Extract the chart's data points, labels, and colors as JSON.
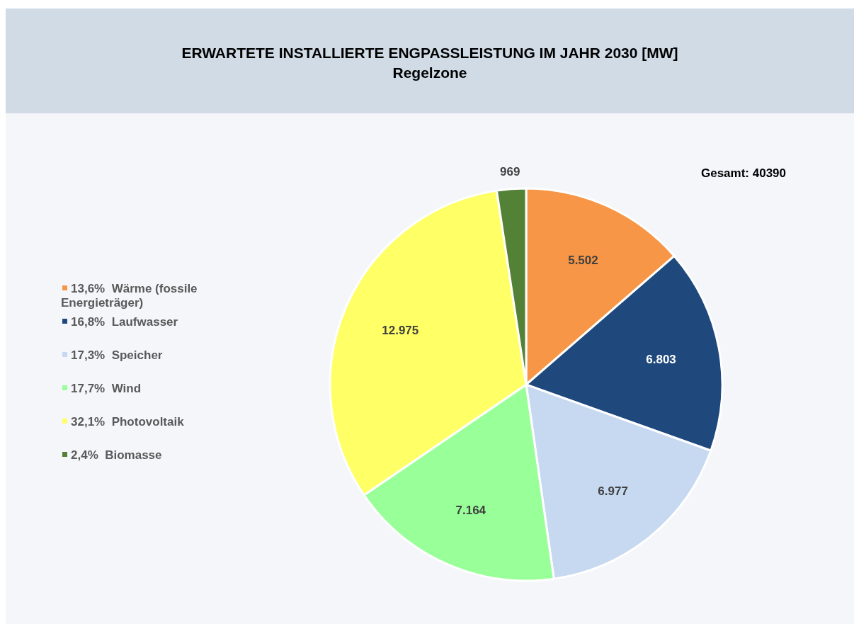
{
  "chart_data": {
    "type": "pie",
    "title": "ERWARTETE INSTALLIERTE ENGPASSLEISTUNG IM JAHR 2030 [MW]",
    "subtitle": "Regelzone",
    "categories": [
      "13,6%  Wärme (fossile Energieträger)",
      "16,8%  Laufwasser",
      "17,3%  Speicher",
      "17,7%  Wind",
      "32,1%  Photovoltaik",
      "2,4%  Biomasse"
    ],
    "values": [
      5502,
      6803,
      6977,
      7164,
      12975,
      969
    ],
    "value_labels": [
      "5.502",
      "6.803",
      "6.977",
      "7.164",
      "12.975",
      "969"
    ],
    "colors": [
      "#f79646",
      "#1f497d",
      "#c6d9f1",
      "#99ff99",
      "#ffff66",
      "#538135"
    ],
    "legend": "left",
    "annotations": [
      "Gesamt: 40390"
    ]
  }
}
